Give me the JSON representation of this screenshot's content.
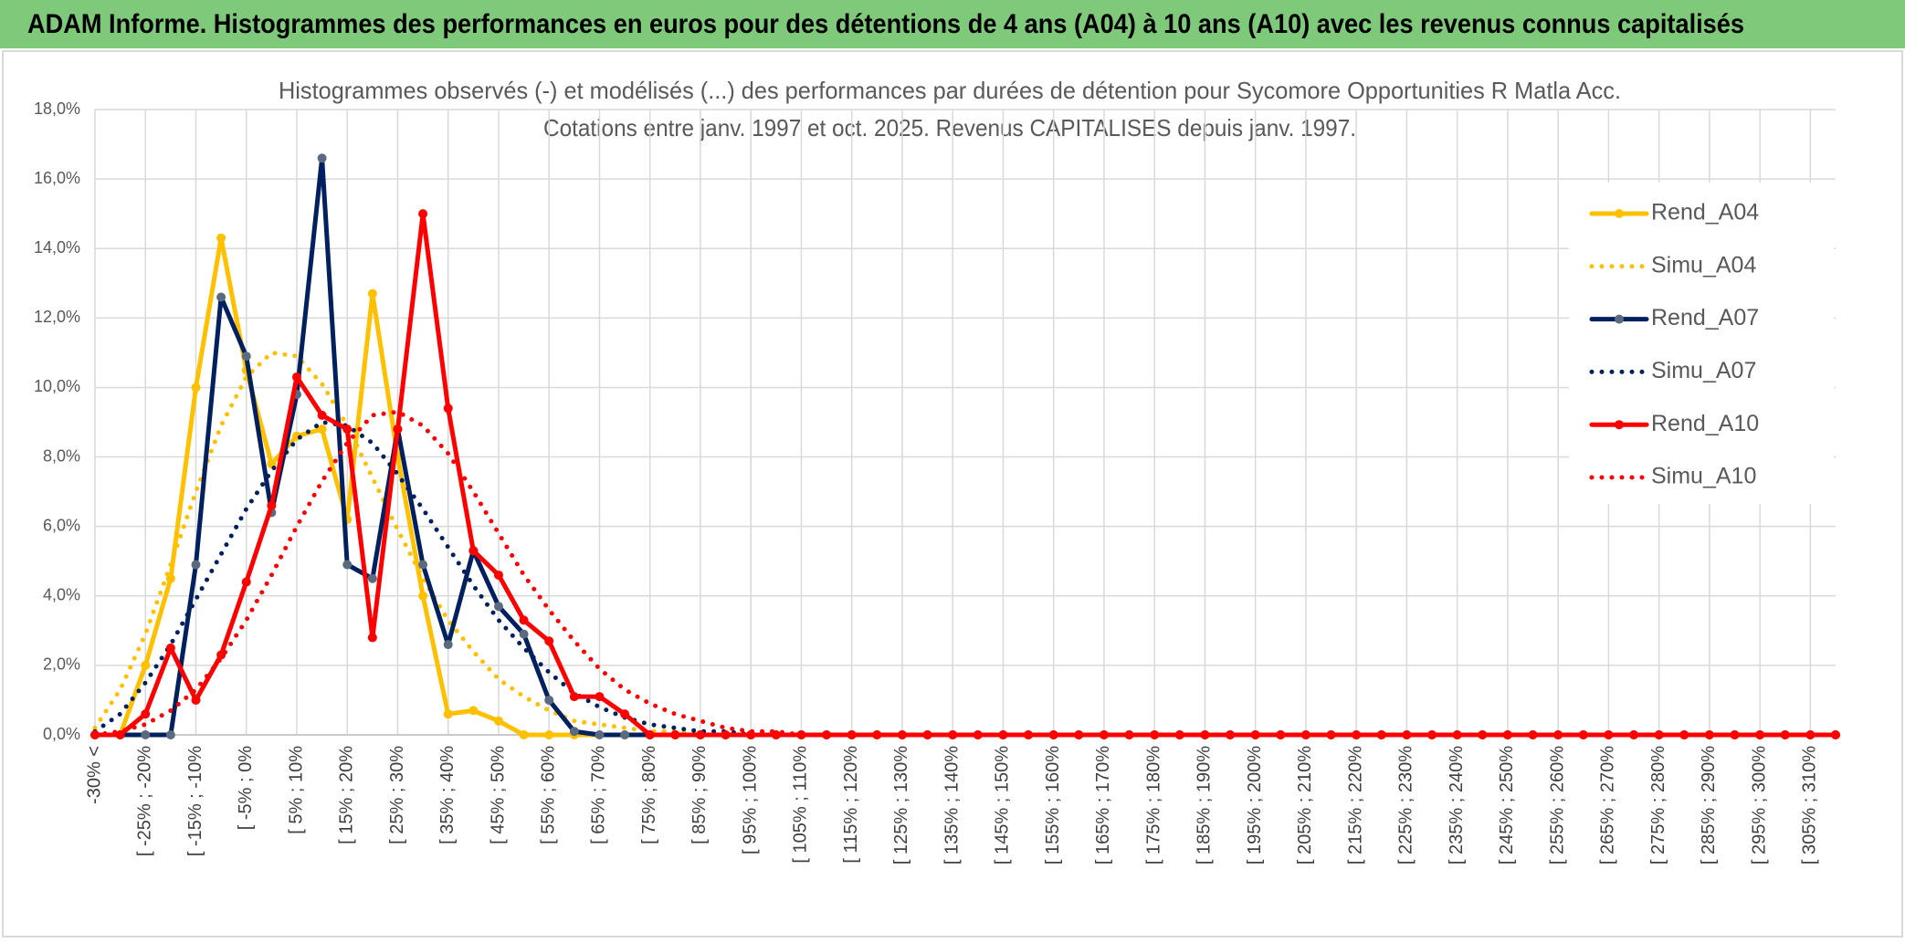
{
  "header": {
    "title": "ADAM Informe. Histogrammes des performances en euros pour des détentions de 4 ans (A04) à 10 ans (A10) avec les revenus connus capitalisés"
  },
  "chart_data": {
    "type": "line",
    "title": "Histogrammes observés (-) et modélisés (...) des performances par durées de détention pour Sycomore Opportunities R Matla Acc.",
    "subtitle": "Cotations entre janv. 1997 et oct. 2025. Revenus CAPITALISES depuis janv. 1997.",
    "categories": [
      "-30% <",
      null,
      "[ -25% ; -20%",
      null,
      "[ -15% ; -10%",
      null,
      "[ -5% ; 0%",
      null,
      "[ 5% ; 10%",
      null,
      "[ 15% ; 20%",
      null,
      "[ 25% ; 30%",
      null,
      "[ 35% ; 40%",
      null,
      "[ 45% ; 50%",
      null,
      "[ 55% ; 60%",
      null,
      "[ 65% ; 70%",
      null,
      "[ 75% ; 80%",
      null,
      "[ 85% ; 90%",
      null,
      "[ 95% ; 100%",
      null,
      "[ 105% ; 110%",
      null,
      "[ 115% ; 120%",
      null,
      "[ 125% ; 130%",
      null,
      "[ 135% ; 140%",
      null,
      "[ 145% ; 150%",
      null,
      "[ 155% ; 160%",
      null,
      "[ 165% ; 170%",
      null,
      "[ 175% ; 180%",
      null,
      "[ 185% ; 190%",
      null,
      "[ 195% ; 200%",
      null,
      "[ 205% ; 210%",
      null,
      "[ 215% ; 220%",
      null,
      "[ 225% ; 230%",
      null,
      "[ 235% ; 240%",
      null,
      "[ 245% ; 250%",
      null,
      "[ 255% ; 260%",
      null,
      "[ 265% ; 270%",
      null,
      "[ 275% ; 280%",
      null,
      "[ 285% ; 290%",
      null,
      "[ 295% ; 300%",
      null,
      "[ 305% ; 310%",
      null
    ],
    "series": [
      {
        "name": "Rend_A04",
        "color": "#ffc000",
        "style": "solid",
        "marker": true,
        "marker_color": "#ffc000",
        "values": [
          0,
          0,
          2.0,
          4.5,
          10.0,
          14.3,
          10.5,
          7.8,
          8.6,
          8.8,
          6.2,
          12.7,
          8.0,
          4.0,
          0.6,
          0.7,
          0.4,
          0,
          0,
          0,
          0,
          0,
          0,
          0,
          0,
          0,
          0,
          0,
          0,
          0,
          0,
          0,
          0,
          0,
          0,
          0,
          0,
          0,
          0,
          0,
          0,
          0,
          0,
          0,
          0,
          0,
          0,
          0,
          0,
          0,
          0,
          0,
          0,
          0,
          0,
          0,
          0,
          0,
          0,
          0,
          0,
          0,
          0,
          0,
          0,
          0,
          0,
          0,
          0,
          0
        ]
      },
      {
        "name": "Simu_A04",
        "color": "#ffc000",
        "style": "dotted",
        "marker": false,
        "values": [
          0.2,
          1.3,
          2.9,
          4.9,
          7.0,
          8.9,
          10.3,
          11.0,
          10.9,
          10.1,
          8.9,
          7.4,
          5.9,
          4.5,
          3.3,
          2.4,
          1.6,
          1.1,
          0.7,
          0.4,
          0.3,
          0.2,
          0.1,
          0.1,
          0,
          0,
          0,
          0,
          0,
          0,
          0,
          0,
          0,
          0,
          0,
          0,
          0,
          0,
          0,
          0,
          0,
          0,
          0,
          0,
          0,
          0,
          0,
          0,
          0,
          0,
          0,
          0,
          0,
          0,
          0,
          0,
          0,
          0,
          0,
          0,
          0,
          0,
          0,
          0,
          0,
          0,
          0,
          0,
          0,
          0
        ]
      },
      {
        "name": "Rend_A07",
        "color": "#002060",
        "style": "solid",
        "marker": true,
        "marker_color": "#5b6b7f",
        "values": [
          0,
          0,
          0,
          0,
          4.9,
          12.6,
          10.9,
          6.4,
          9.8,
          16.6,
          4.9,
          4.5,
          8.8,
          4.9,
          2.6,
          5.3,
          3.7,
          2.9,
          1.0,
          0.1,
          0,
          0,
          0,
          0,
          0,
          0,
          0,
          0,
          0,
          0,
          0,
          0,
          0,
          0,
          0,
          0,
          0,
          0,
          0,
          0,
          0,
          0,
          0,
          0,
          0,
          0,
          0,
          0,
          0,
          0,
          0,
          0,
          0,
          0,
          0,
          0,
          0,
          0,
          0,
          0,
          0,
          0,
          0,
          0,
          0,
          0,
          0,
          0,
          0,
          0
        ]
      },
      {
        "name": "Simu_A07",
        "color": "#002060",
        "style": "dotted",
        "marker": false,
        "values": [
          0.1,
          0.6,
          1.5,
          2.6,
          3.9,
          5.2,
          6.5,
          7.6,
          8.5,
          9.0,
          8.9,
          8.4,
          7.5,
          6.5,
          5.4,
          4.3,
          3.3,
          2.5,
          1.8,
          1.2,
          0.8,
          0.5,
          0.3,
          0.2,
          0.1,
          0.1,
          0,
          0,
          0,
          0,
          0,
          0,
          0,
          0,
          0,
          0,
          0,
          0,
          0,
          0,
          0,
          0,
          0,
          0,
          0,
          0,
          0,
          0,
          0,
          0,
          0,
          0,
          0,
          0,
          0,
          0,
          0,
          0,
          0,
          0,
          0,
          0,
          0,
          0,
          0,
          0,
          0,
          0,
          0,
          0
        ]
      },
      {
        "name": "Rend_A10",
        "color": "#ff0000",
        "style": "solid",
        "marker": true,
        "marker_color": "#ff0000",
        "values": [
          0,
          0,
          0.6,
          2.5,
          1.0,
          2.3,
          4.4,
          6.6,
          10.3,
          9.2,
          8.8,
          2.8,
          8.8,
          15.0,
          9.4,
          5.3,
          4.6,
          3.3,
          2.7,
          1.1,
          1.1,
          0.6,
          0,
          0,
          0,
          0,
          0,
          0,
          0,
          0,
          0,
          0,
          0,
          0,
          0,
          0,
          0,
          0,
          0,
          0,
          0,
          0,
          0,
          0,
          0,
          0,
          0,
          0,
          0,
          0,
          0,
          0,
          0,
          0,
          0,
          0,
          0,
          0,
          0,
          0,
          0,
          0,
          0,
          0,
          0,
          0,
          0,
          0,
          0,
          0
        ]
      },
      {
        "name": "Simu_A10",
        "color": "#ff0000",
        "style": "dotted",
        "marker": false,
        "values": [
          0,
          0.1,
          0.3,
          0.7,
          1.3,
          2.2,
          3.3,
          4.6,
          6.0,
          7.3,
          8.4,
          9.2,
          9.3,
          8.9,
          8.1,
          7.0,
          5.8,
          4.6,
          3.6,
          2.7,
          1.9,
          1.3,
          0.9,
          0.6,
          0.4,
          0.2,
          0.1,
          0.1,
          0,
          0,
          0,
          0,
          0,
          0,
          0,
          0,
          0,
          0,
          0,
          0,
          0,
          0,
          0,
          0,
          0,
          0,
          0,
          0,
          0,
          0,
          0,
          0,
          0,
          0,
          0,
          0,
          0,
          0,
          0,
          0,
          0,
          0,
          0,
          0,
          0,
          0,
          0,
          0,
          0,
          0
        ]
      }
    ],
    "ylim": [
      0,
      18
    ],
    "yticks": [
      {
        "value": 0,
        "label": "0,0%"
      },
      {
        "value": 2,
        "label": "2,0%"
      },
      {
        "value": 4,
        "label": "4,0%"
      },
      {
        "value": 6,
        "label": "6,0%"
      },
      {
        "value": 8,
        "label": "8,0%"
      },
      {
        "value": 10,
        "label": "10,0%"
      },
      {
        "value": 12,
        "label": "12,0%"
      },
      {
        "value": 14,
        "label": "14,0%"
      },
      {
        "value": 16,
        "label": "16,0%"
      },
      {
        "value": 18,
        "label": "18,0%"
      }
    ],
    "grid": true,
    "legend": "right"
  }
}
